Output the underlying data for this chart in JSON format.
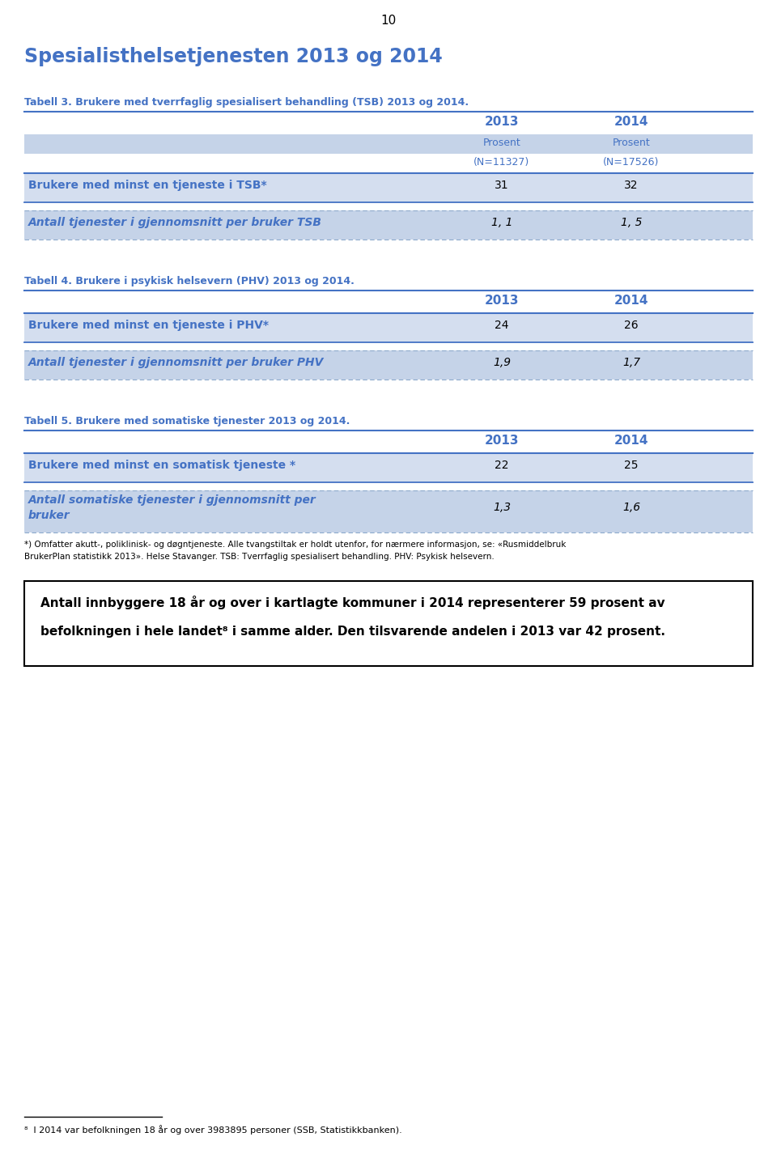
{
  "page_number": "10",
  "title": "Spesialisthelsetjenesten 2013 og 2014",
  "title_color": "#4472C4",
  "title_fontsize": 17,
  "tabell3_label": "Tabell 3. Brukere med tverrfaglig spesialisert behandling (TSB) 2013 og 2014.",
  "tabell4_label": "Tabell 4. Brukere i psykisk helsevern (PHV) 2013 og 2014.",
  "tabell5_label": "Tabell 5. Brukere med somatiske tjenester 2013 og 2014.",
  "label_color": "#4472C4",
  "tabell3_subheaders": [
    "Prosent",
    "Prosent"
  ],
  "tabell3_subheaders2": [
    "(N=11327)",
    "(N=17526)"
  ],
  "tabell3_row1_label": "Brukere med minst en tjeneste i TSB*",
  "tabell3_row1_vals": [
    "31",
    "32"
  ],
  "tabell3_row2_label": "Antall tjenester i gjennomsnitt per bruker TSB",
  "tabell3_row2_vals": [
    "1, 1",
    "1, 5"
  ],
  "tabell4_row1_label": "Brukere med minst en tjeneste i PHV*",
  "tabell4_row1_vals": [
    "24",
    "26"
  ],
  "tabell4_row2_label": "Antall tjenester i gjennomsnitt per bruker PHV",
  "tabell4_row2_vals": [
    "1,9",
    "1,7"
  ],
  "tabell5_row1_label": "Brukere med minst en somatisk tjeneste *",
  "tabell5_row1_vals": [
    "22",
    "25"
  ],
  "tabell5_row2_label_line1": "Antall somatiske tjenester i gjennomsnitt per",
  "tabell5_row2_label_line2": "bruker",
  "tabell5_row2_vals": [
    "1,3",
    "1,6"
  ],
  "footnote_line1": "*) Omfatter akutt-, poliklinisk- og døgntjeneste. Alle tvangstiltak er holdt utenfor, for nærmere informasjon, se: «Rusmiddelbruk",
  "footnote_line2": "BrukerPlan statistikk 2013». Helse Stavanger. TSB: Tverrfaglig spesialisert behandling. PHV: Psykisk helsevern.",
  "highlight_text_line1": "Antall innbyggere 18 år og over i kartlagte kommuner i 2014 representerer 59 prosent av",
  "highlight_text_line2": "befolkningen i hele landet⁸ i samme alder. Den tilsvarende andelen i 2013 var 42 prosent.",
  "footnote8_text": "⁸  I 2014 var befolkningen 18 år og over 3983895 personer (SSB, Statistikkbanken).",
  "header_bg": "#C5D3E8",
  "row1_bg": "#D4DEEF",
  "row2_bg": "#C5D3E8",
  "line_color": "#4472C4",
  "dash_color": "#8EAACC",
  "header_text_color": "#4472C4",
  "row_label_color": "#4472C4",
  "black": "#000000",
  "white": "#FFFFFF"
}
